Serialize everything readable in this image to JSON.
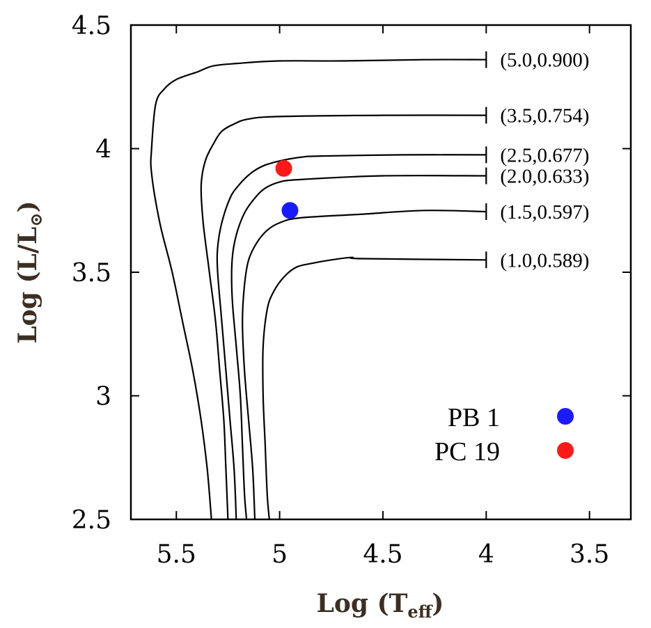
{
  "chart_data": {
    "type": "line",
    "title": "",
    "xlabel": "Log (T",
    "xlabel_sub": "eff",
    "xlabel_close": ")",
    "ylabel": "Log (L/L",
    "ylabel_symbol": "⊙",
    "ylabel_close": ")",
    "xlim": [
      5.72,
      3.3
    ],
    "ylim": [
      2.5,
      4.5
    ],
    "x_ticks": [
      5.5,
      5.0,
      4.5,
      4.0,
      3.5
    ],
    "x_tick_labels": [
      "5.5",
      "5",
      "4.5",
      "4",
      "3.5"
    ],
    "y_ticks": [
      2.5,
      3.0,
      3.5,
      4.0,
      4.5
    ],
    "y_tick_labels": [
      "2.5",
      "3",
      "3.5",
      "4",
      "4.5"
    ],
    "grid": false,
    "series": [
      {
        "name": "(5.0,0.900)",
        "line_color": "#000000",
        "points": [
          [
            4.0,
            4.36
          ],
          [
            4.3,
            4.36
          ],
          [
            4.7,
            4.355
          ],
          [
            5.0,
            4.355
          ],
          [
            5.2,
            4.345
          ],
          [
            5.32,
            4.335
          ],
          [
            5.4,
            4.31
          ],
          [
            5.5,
            4.28
          ],
          [
            5.56,
            4.24
          ],
          [
            5.6,
            4.18
          ],
          [
            5.62,
            4.0
          ],
          [
            5.62,
            3.9
          ],
          [
            5.58,
            3.7
          ],
          [
            5.52,
            3.5
          ],
          [
            5.47,
            3.3
          ],
          [
            5.42,
            3.1
          ],
          [
            5.38,
            2.9
          ],
          [
            5.35,
            2.7
          ],
          [
            5.33,
            2.5
          ]
        ]
      },
      {
        "name": "(3.5,0.754)",
        "line_color": "#000000",
        "points": [
          [
            4.0,
            4.135
          ],
          [
            4.5,
            4.135
          ],
          [
            5.0,
            4.13
          ],
          [
            5.15,
            4.12
          ],
          [
            5.22,
            4.1
          ],
          [
            5.28,
            4.07
          ],
          [
            5.32,
            4.02
          ],
          [
            5.36,
            3.95
          ],
          [
            5.38,
            3.85
          ],
          [
            5.37,
            3.7
          ],
          [
            5.34,
            3.5
          ],
          [
            5.31,
            3.3
          ],
          [
            5.29,
            3.1
          ],
          [
            5.27,
            2.9
          ],
          [
            5.26,
            2.7
          ],
          [
            5.25,
            2.5
          ]
        ]
      },
      {
        "name": "(2.5,0.677)",
        "line_color": "#000000",
        "points": [
          [
            4.0,
            3.975
          ],
          [
            4.4,
            3.975
          ],
          [
            4.8,
            3.97
          ],
          [
            4.9,
            3.965
          ],
          [
            5.0,
            3.95
          ],
          [
            5.08,
            3.93
          ],
          [
            5.14,
            3.9
          ],
          [
            5.2,
            3.85
          ],
          [
            5.24,
            3.8
          ],
          [
            5.28,
            3.7
          ],
          [
            5.3,
            3.6
          ],
          [
            5.3,
            3.5
          ],
          [
            5.28,
            3.3
          ],
          [
            5.26,
            3.1
          ],
          [
            5.24,
            2.9
          ],
          [
            5.22,
            2.7
          ],
          [
            5.21,
            2.5
          ]
        ]
      },
      {
        "name": "(2.0,0.633)",
        "line_color": "#000000",
        "points": [
          [
            4.0,
            3.89
          ],
          [
            4.5,
            3.89
          ],
          [
            4.9,
            3.875
          ],
          [
            5.0,
            3.865
          ],
          [
            5.07,
            3.84
          ],
          [
            5.12,
            3.8
          ],
          [
            5.17,
            3.74
          ],
          [
            5.21,
            3.65
          ],
          [
            5.23,
            3.55
          ],
          [
            5.23,
            3.4
          ],
          [
            5.21,
            3.2
          ],
          [
            5.19,
            3.0
          ],
          [
            5.18,
            2.8
          ],
          [
            5.17,
            2.6
          ],
          [
            5.16,
            2.5
          ]
        ]
      },
      {
        "name": "(1.5,0.597)",
        "line_color": "#000000",
        "points": [
          [
            4.0,
            3.745
          ],
          [
            4.3,
            3.75
          ],
          [
            4.6,
            3.735
          ],
          [
            4.9,
            3.72
          ],
          [
            5.0,
            3.7
          ],
          [
            5.06,
            3.67
          ],
          [
            5.11,
            3.62
          ],
          [
            5.15,
            3.55
          ],
          [
            5.17,
            3.45
          ],
          [
            5.18,
            3.3
          ],
          [
            5.17,
            3.1
          ],
          [
            5.15,
            2.9
          ],
          [
            5.13,
            2.7
          ],
          [
            5.12,
            2.5
          ]
        ]
      },
      {
        "name": "(1.0,0.589)",
        "line_color": "#000000",
        "points": [
          [
            4.0,
            3.55
          ],
          [
            4.6,
            3.555
          ],
          [
            4.65,
            3.56
          ],
          [
            4.75,
            3.55
          ],
          [
            4.85,
            3.535
          ],
          [
            4.92,
            3.52
          ],
          [
            4.98,
            3.48
          ],
          [
            5.03,
            3.42
          ],
          [
            5.06,
            3.35
          ],
          [
            5.08,
            3.2
          ],
          [
            5.08,
            3.0
          ],
          [
            5.07,
            2.8
          ],
          [
            5.06,
            2.6
          ],
          [
            5.05,
            2.5
          ]
        ]
      }
    ],
    "track_labels": [
      "(5.0,0.900)",
      "(3.5,0.754)",
      "(2.5,0.677)",
      "(2.0,0.633)",
      "(1.5,0.597)",
      "(1.0,0.589)"
    ],
    "track_label_y": [
      4.36,
      4.135,
      3.975,
      3.89,
      3.745,
      3.55
    ],
    "track_label_x": 4.0,
    "points": [
      {
        "name": "PB 1",
        "x": 4.95,
        "y": 3.75,
        "color": "#1a1aff"
      },
      {
        "name": "PC 19",
        "x": 4.98,
        "y": 3.92,
        "color": "#ff1a1a"
      }
    ],
    "legend": {
      "position": "bottom-right",
      "entries": [
        {
          "label": "PB 1",
          "color": "#1a1aff"
        },
        {
          "label": "PC 19",
          "color": "#ff1a1a"
        }
      ]
    }
  }
}
